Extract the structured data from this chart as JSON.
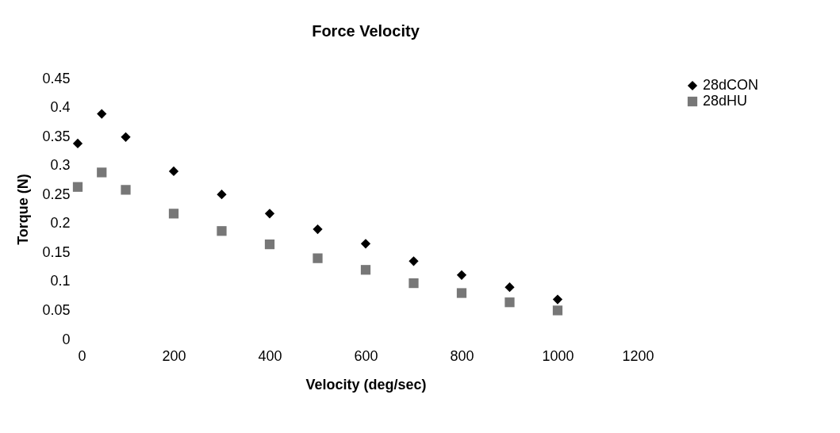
{
  "chart_data": {
    "type": "scatter",
    "title": "Force Velocity",
    "xlabel": "Velocity (deg/sec)",
    "ylabel": "Torque (N)",
    "x": [
      0,
      50,
      100,
      200,
      300,
      400,
      500,
      600,
      700,
      800,
      900,
      1000
    ],
    "series": [
      {
        "name": "28dCON",
        "color": "#000000",
        "marker": "diamond",
        "values": [
          0.338,
          0.389,
          0.349,
          0.29,
          0.25,
          0.217,
          0.19,
          0.165,
          0.135,
          0.111,
          0.09,
          0.069
        ]
      },
      {
        "name": "28dHU",
        "color": "#777777",
        "marker": "square",
        "values": [
          0.263,
          0.288,
          0.258,
          0.217,
          0.187,
          0.164,
          0.14,
          0.12,
          0.097,
          0.08,
          0.064,
          0.05
        ]
      }
    ],
    "xlim": [
      0,
      1200
    ],
    "xticks": [
      0,
      200,
      400,
      600,
      800,
      1000,
      1200
    ],
    "ylim": [
      0,
      0.45
    ],
    "yticks": [
      0,
      0.05,
      0.1,
      0.15,
      0.2,
      0.25,
      0.3,
      0.35,
      0.4,
      0.45
    ],
    "grid": false,
    "legend": "right"
  }
}
